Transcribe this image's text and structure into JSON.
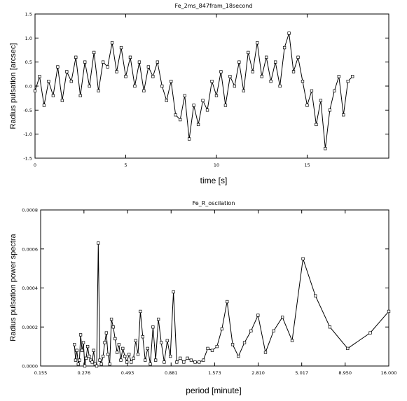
{
  "chart_data": [
    {
      "type": "line",
      "title": "Fe_2ms_847fram_18second",
      "xlabel": "time [s]",
      "ylabel": "Radius pulsation [arcsec]",
      "xlim": [
        0,
        19.5
      ],
      "ylim": [
        -1.5,
        1.5
      ],
      "x_ticks": [
        "0",
        "5",
        "10",
        "15"
      ],
      "x_tick_values": [
        0,
        5,
        10,
        15
      ],
      "y_ticks": [
        "-1.5",
        "-1.0",
        "-0.5",
        "0.0",
        "0.5",
        "1.0",
        "1.5"
      ],
      "y_tick_values": [
        -1.5,
        -1.0,
        -0.5,
        0.0,
        0.5,
        1.0,
        1.5
      ],
      "grid": false,
      "marker": "square",
      "series": [
        {
          "x": [
            0.0,
            0.25,
            0.5,
            0.75,
            1.0,
            1.25,
            1.5,
            1.75,
            2.0,
            2.25,
            2.5,
            2.75,
            3.0,
            3.25,
            3.5,
            3.75,
            4.0,
            4.25,
            4.5,
            4.75,
            5.0,
            5.25,
            5.5,
            5.75,
            6.0,
            6.25,
            6.5,
            6.75,
            7.0,
            7.25,
            7.5,
            7.75,
            8.0,
            8.25,
            8.5,
            8.75,
            9.0,
            9.25,
            9.5,
            9.75,
            10.0,
            10.25,
            10.5,
            10.75,
            11.0,
            11.25,
            11.5,
            11.75,
            12.0,
            12.25,
            12.5,
            12.75,
            13.0,
            13.25,
            13.5,
            13.75,
            14.0,
            14.25,
            14.5,
            14.75,
            15.0,
            15.25,
            15.5,
            15.75,
            16.0,
            16.25,
            16.5,
            16.75,
            17.0,
            17.25,
            17.5
          ],
          "y": [
            -0.1,
            0.2,
            -0.4,
            0.1,
            -0.2,
            0.4,
            -0.3,
            0.3,
            0.1,
            0.6,
            -0.2,
            0.5,
            0.0,
            0.7,
            -0.1,
            0.5,
            0.4,
            0.9,
            0.3,
            0.8,
            0.2,
            0.6,
            0.0,
            0.5,
            -0.1,
            0.4,
            0.2,
            0.5,
            0.0,
            -0.3,
            0.1,
            -0.6,
            -0.7,
            -0.2,
            -1.1,
            -0.4,
            -0.8,
            -0.3,
            -0.5,
            0.1,
            -0.2,
            0.3,
            -0.4,
            0.2,
            0.0,
            0.5,
            -0.1,
            0.7,
            0.3,
            0.9,
            0.2,
            0.6,
            0.1,
            0.5,
            0.0,
            0.8,
            1.1,
            0.3,
            0.6,
            0.1,
            -0.4,
            -0.1,
            -0.8,
            -0.3,
            -1.3,
            -0.5,
            -0.1,
            0.2,
            -0.6,
            0.1,
            0.2
          ]
        }
      ]
    },
    {
      "type": "line",
      "title": "Fe_R_oscilation",
      "xlabel": "period [minute]",
      "ylabel": "Radius pulsation power spectra",
      "xscale": "log",
      "xlim": [
        0.155,
        16.0
      ],
      "ylim": [
        0.0,
        0.0008
      ],
      "x_ticks": [
        "0.155",
        "0.276",
        "0.493",
        "0.881",
        "1.573",
        "2.810",
        "5.017",
        "8.950",
        "16.000"
      ],
      "x_tick_values": [
        0.155,
        0.276,
        0.493,
        0.881,
        1.573,
        2.81,
        5.017,
        8.95,
        16.0
      ],
      "y_ticks": [
        "0.0000",
        "0.0002",
        "0.0004",
        "0.0006",
        "0.0008"
      ],
      "y_tick_values": [
        0.0,
        0.0002,
        0.0004,
        0.0006,
        0.0008
      ],
      "grid": false,
      "marker": "square",
      "series": [
        {
          "x": [
            0.243,
            0.247,
            0.251,
            0.256,
            0.26,
            0.264,
            0.269,
            0.274,
            0.279,
            0.284,
            0.29,
            0.296,
            0.302,
            0.308,
            0.314,
            0.32,
            0.327,
            0.334,
            0.341,
            0.348,
            0.356,
            0.364,
            0.372,
            0.38,
            0.389,
            0.398,
            0.408,
            0.418,
            0.429,
            0.44,
            0.451,
            0.463,
            0.476,
            0.489,
            0.503,
            0.518,
            0.534,
            0.55,
            0.567,
            0.585,
            0.604,
            0.624,
            0.645,
            0.668,
            0.692,
            0.717,
            0.744,
            0.773,
            0.804,
            0.837,
            0.872,
            0.909,
            0.95,
            0.995,
            1.043,
            1.095,
            1.151,
            1.213,
            1.28,
            1.354,
            1.435,
            1.524,
            1.623,
            1.734,
            1.858,
            1.999,
            2.159,
            2.342,
            2.555,
            2.803,
            3.097,
            3.45,
            3.88,
            4.417,
            5.104,
            6.018,
            7.299,
            9.25,
            12.5,
            16.0
          ],
          "y": [
            0.00011,
            3e-05,
            8e-05,
            1e-05,
            3e-05,
            0.00016,
            8e-05,
            0.00012,
            0.0,
            4e-05,
            0.0001,
            5e-05,
            3e-05,
            2e-05,
            8e-05,
            1e-05,
            0.0,
            0.00063,
            3e-05,
            1e-05,
            5e-05,
            0.00012,
            0.00017,
            6e-05,
            1e-05,
            0.00024,
            0.0002,
            0.00014,
            7e-05,
            0.00011,
            3e-05,
            9e-05,
            5e-05,
            2e-05,
            6e-05,
            2e-05,
            4e-05,
            0.00013,
            6e-05,
            0.00028,
            0.00015,
            3e-05,
            9e-05,
            1e-05,
            0.0002,
            3e-05,
            0.00024,
            0.00012,
            2e-05,
            0.00013,
            5e-05,
            0.00038,
            2e-05,
            4e-05,
            2e-05,
            4e-05,
            3e-05,
            2e-05,
            2e-05,
            3e-05,
            9e-05,
            8e-05,
            0.0001,
            0.00019,
            0.00033,
            0.00011,
            5e-05,
            0.00012,
            0.00018,
            0.00026,
            7e-05,
            0.00018,
            0.00025,
            0.00013,
            0.00055,
            0.00036,
            0.0002,
            9e-05,
            0.00017,
            0.00028
          ]
        }
      ]
    }
  ]
}
